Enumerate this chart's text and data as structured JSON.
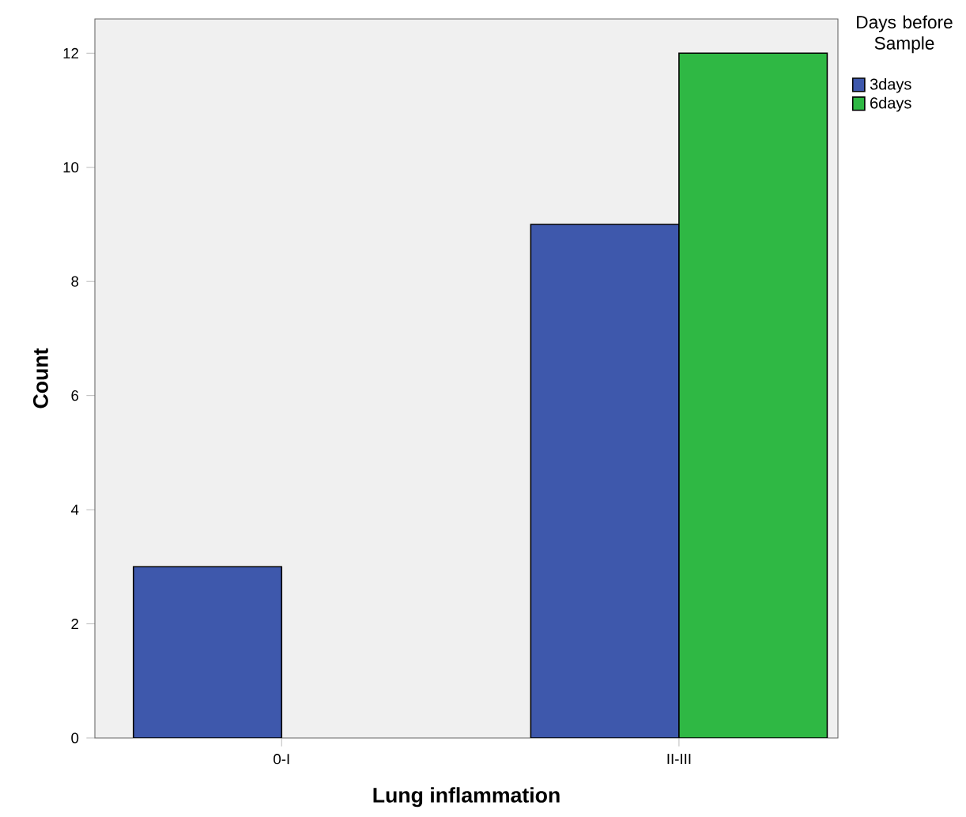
{
  "chart_data": {
    "type": "bar",
    "xlabel": "Lung inflammation",
    "ylabel": "Count",
    "legend_title": "Days before Sample",
    "categories": [
      "0-I",
      "II-III"
    ],
    "series": [
      {
        "name": "3days",
        "color": "#3e58ac",
        "values": [
          3,
          9
        ]
      },
      {
        "name": "6days",
        "color": "#2fb844",
        "values": [
          null,
          12
        ]
      }
    ],
    "ylim": [
      0,
      12.6
    ],
    "yticks": [
      0,
      2,
      4,
      6,
      8,
      10,
      12
    ],
    "grid": false,
    "legend": "right"
  }
}
